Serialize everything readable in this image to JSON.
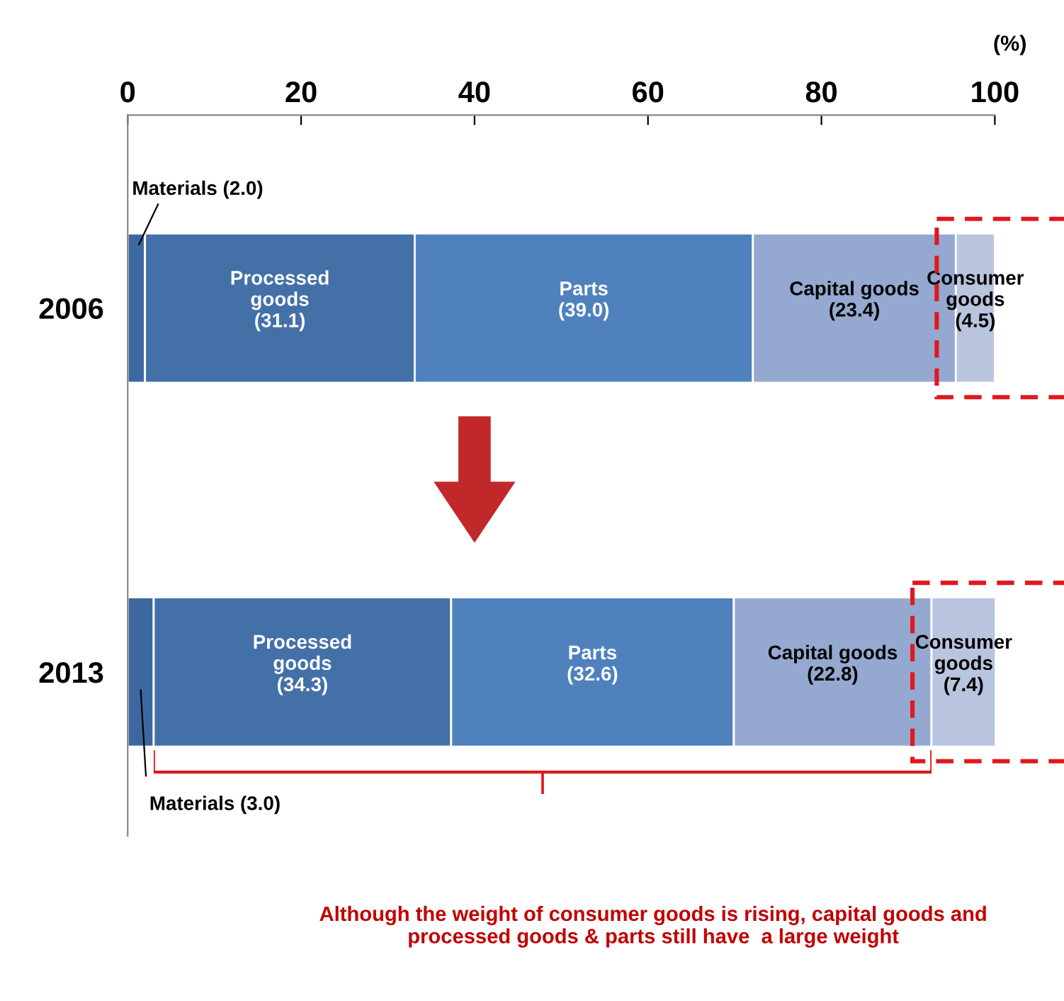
{
  "chart_data": {
    "type": "bar",
    "orientation": "horizontal",
    "stacked": true,
    "xlabel": "(%)",
    "categories": [
      "2006",
      "2013"
    ],
    "series": [
      {
        "name": "Materials",
        "color": "#3d679f",
        "values": [
          2.0,
          3.0
        ],
        "value_labels": [
          "(2.0)",
          "(3.0)"
        ]
      },
      {
        "name": "Processed goods",
        "color": "#4470a8",
        "values": [
          31.1,
          34.3
        ],
        "value_labels": [
          "(31.1)",
          "(34.3)"
        ]
      },
      {
        "name": "Parts",
        "color": "#4f81bd",
        "values": [
          39.0,
          32.6
        ],
        "value_labels": [
          "(39.0)",
          "(32.6)"
        ]
      },
      {
        "name": "Capital goods",
        "color": "#95a9d0",
        "values": [
          23.4,
          22.8
        ],
        "value_labels": [
          "(23.4)",
          "(22.8)"
        ]
      },
      {
        "name": "Consumer goods",
        "color": "#b9c4de",
        "values": [
          4.5,
          7.4
        ],
        "value_labels": [
          "(4.5)",
          "(7.4)"
        ]
      }
    ],
    "xlim": [
      0,
      100
    ],
    "xticks": [
      0,
      20,
      40,
      60,
      80,
      100
    ],
    "grid": false,
    "annotations": [
      "Although the weight of consumer goods is rising, capital goods and processed goods & parts still have  a large weight"
    ]
  }
}
